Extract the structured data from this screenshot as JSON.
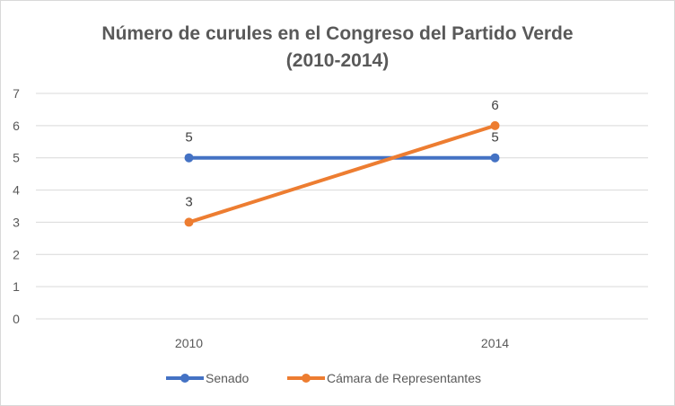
{
  "chart_data": {
    "type": "line",
    "title": "Número de curules en el Congreso del Partido Verde",
    "subtitle": "(2010-2014)",
    "categories": [
      "2010",
      "2014"
    ],
    "series": [
      {
        "name": "Senado",
        "values": [
          5,
          5
        ],
        "color": "#4472C4"
      },
      {
        "name": "Cámara de Representantes",
        "values": [
          3,
          6
        ],
        "color": "#ED7D31"
      }
    ],
    "ylim": [
      0,
      7
    ],
    "yticks": [
      "0",
      "1",
      "2",
      "3",
      "4",
      "5",
      "6",
      "7"
    ],
    "xlabel": "",
    "ylabel": "",
    "grid": true,
    "legend_position": "bottom",
    "data_labels": true
  }
}
